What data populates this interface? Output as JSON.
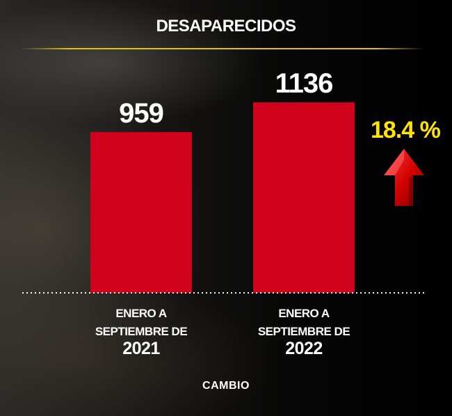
{
  "title": "DESAPARECIDOS",
  "change_label": "18.4 %",
  "brand": "CAMBIO",
  "colors": {
    "bar": "#d0021b",
    "accent": "#ffe500",
    "rule": "#e3c400",
    "text": "#ffffff"
  },
  "icons": {
    "trend": "up-arrow-icon"
  },
  "chart_data": {
    "type": "bar",
    "title": "DESAPARECIDOS",
    "categories": [
      [
        "ENERO A",
        "SEPTIEMBRE DE",
        "2021"
      ],
      [
        "ENERO A",
        "SEPTIEMBRE DE",
        "2022"
      ]
    ],
    "values": [
      959,
      1136
    ],
    "data_labels": [
      "959",
      "1136"
    ],
    "ylim": [
      0,
      1290
    ],
    "grid": false,
    "annotation": "18.4 %"
  }
}
